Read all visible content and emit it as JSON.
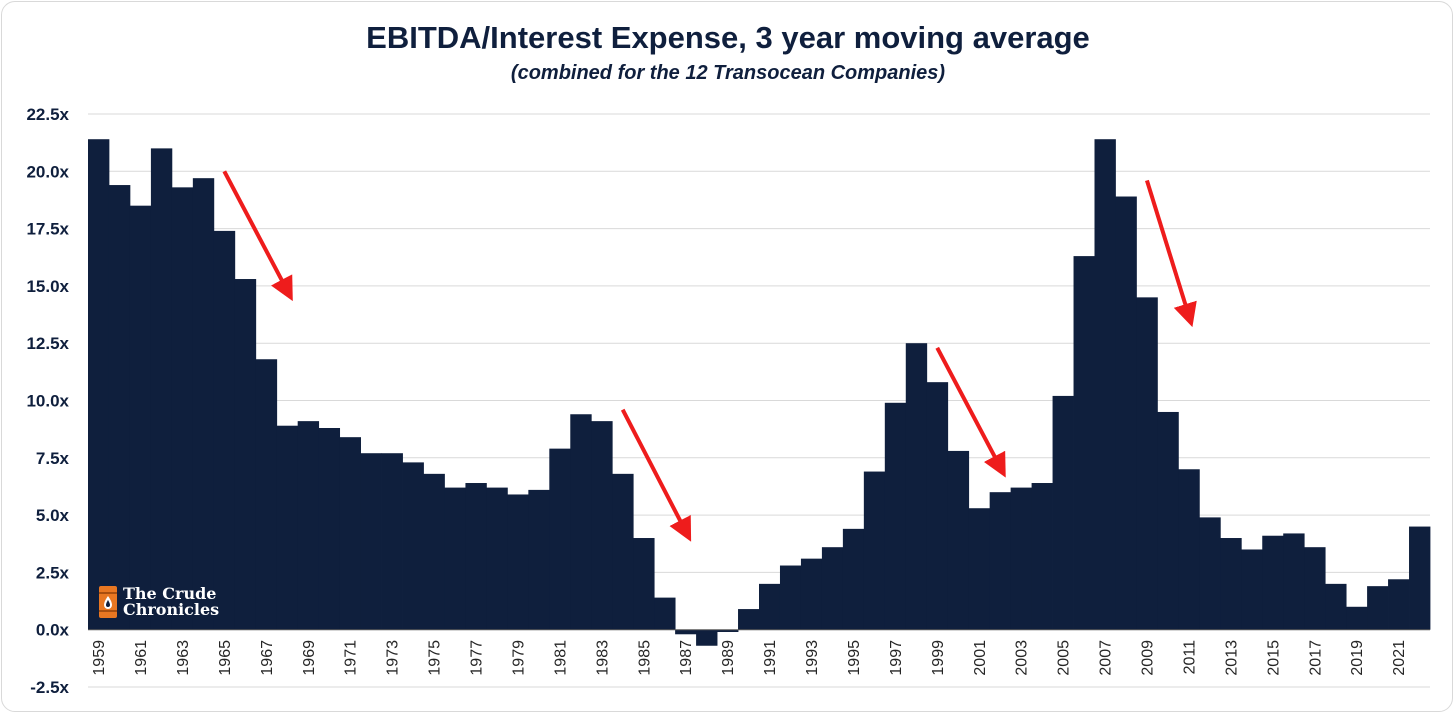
{
  "chart_data": {
    "type": "bar",
    "title": "EBITDA/Interest Expense, 3 year moving average",
    "subtitle": "(combined for the 12 Transocean Companies)",
    "xlabel": "",
    "ylabel": "",
    "ylim": [
      -2.5,
      22.5
    ],
    "yticks": [
      "-2.5x",
      "0.0x",
      "2.5x",
      "5.0x",
      "7.5x",
      "10.0x",
      "12.5x",
      "15.0x",
      "17.5x",
      "20.0x",
      "22.5x"
    ],
    "ytick_values": [
      -2.5,
      0,
      2.5,
      5,
      7.5,
      10,
      12.5,
      15,
      17.5,
      20,
      22.5
    ],
    "xtick_labels": [
      "1959",
      "1961",
      "1963",
      "1965",
      "1967",
      "1969",
      "1971",
      "1973",
      "1975",
      "1977",
      "1979",
      "1981",
      "1983",
      "1985",
      "1987",
      "1989",
      "1991",
      "1993",
      "1995",
      "1997",
      "1999",
      "2001",
      "2003",
      "2005",
      "2007",
      "2009",
      "2011",
      "2013",
      "2015",
      "2017",
      "2019",
      "2021"
    ],
    "categories": [
      "1959",
      "1960",
      "1961",
      "1962",
      "1963",
      "1964",
      "1965",
      "1966",
      "1967",
      "1968",
      "1969",
      "1970",
      "1971",
      "1972",
      "1973",
      "1974",
      "1975",
      "1976",
      "1977",
      "1978",
      "1979",
      "1980",
      "1981",
      "1982",
      "1983",
      "1984",
      "1985",
      "1986",
      "1987",
      "1988",
      "1989",
      "1990",
      "1991",
      "1992",
      "1993",
      "1994",
      "1995",
      "1996",
      "1997",
      "1998",
      "1999",
      "2000",
      "2001",
      "2002",
      "2003",
      "2004",
      "2005",
      "2006",
      "2007",
      "2008",
      "2009",
      "2010",
      "2011",
      "2012",
      "2013",
      "2014",
      "2015",
      "2016",
      "2017",
      "2018",
      "2019",
      "2020",
      "2021",
      "2022"
    ],
    "values": [
      21.4,
      19.4,
      18.5,
      21.0,
      19.3,
      19.7,
      17.4,
      15.3,
      11.8,
      8.9,
      9.1,
      8.8,
      8.4,
      7.7,
      7.7,
      7.3,
      6.8,
      6.2,
      6.4,
      6.2,
      5.9,
      6.1,
      7.9,
      9.4,
      9.1,
      6.8,
      4.0,
      1.4,
      -0.2,
      -0.7,
      -0.1,
      0.9,
      2.0,
      2.8,
      3.1,
      3.6,
      4.4,
      6.9,
      9.9,
      12.5,
      10.8,
      7.8,
      5.3,
      6.0,
      6.2,
      6.4,
      10.2,
      16.3,
      21.4,
      18.9,
      14.5,
      9.5,
      7.0,
      4.9,
      4.0,
      3.5,
      4.1,
      4.2,
      3.6,
      2.0,
      1.0,
      1.9,
      2.2,
      4.5
    ],
    "bar_color": "#0f1f3d",
    "arrow_color": "#ee1c1c",
    "annotations": [
      {
        "type": "arrow",
        "from": {
          "x": "1965",
          "y": 20.0
        },
        "to": {
          "x": "1968",
          "y": 14.8
        }
      },
      {
        "type": "arrow",
        "from": {
          "x": "1984",
          "y": 9.6
        },
        "to": {
          "x": "1987",
          "y": 4.3
        }
      },
      {
        "type": "arrow",
        "from": {
          "x": "1999",
          "y": 12.3
        },
        "to": {
          "x": "2002",
          "y": 7.1
        }
      },
      {
        "type": "arrow",
        "from": {
          "x": "2009",
          "y": 19.6
        },
        "to": {
          "x": "2011",
          "y": 13.7
        }
      }
    ],
    "grid": true,
    "legend": "none"
  },
  "logo": {
    "line1": "The Crude",
    "line2": "Chronicles",
    "icon": "oil-barrel-icon"
  }
}
